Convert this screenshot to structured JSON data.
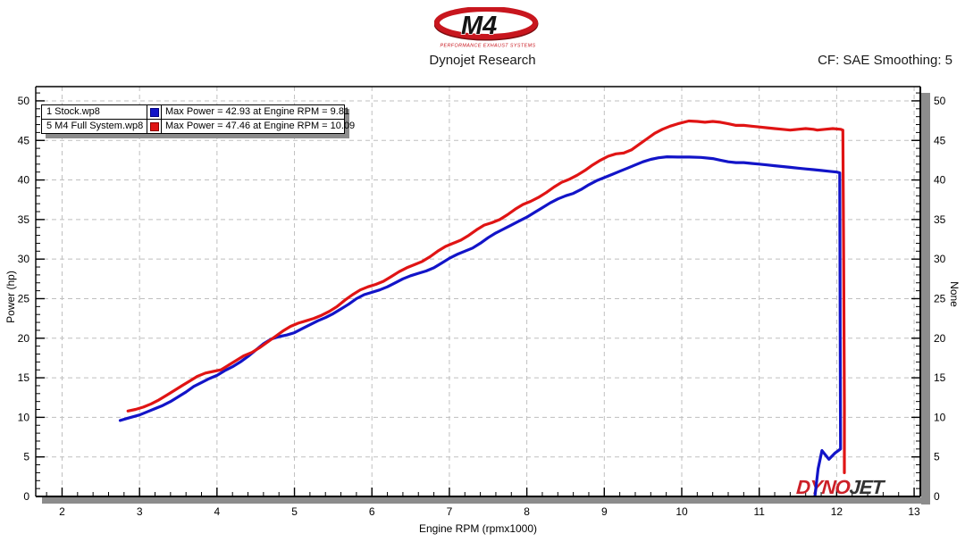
{
  "header": {
    "logo": {
      "m4_text": "M4",
      "tagline": "PERFORMANCE EXHAUST SYSTEMS"
    },
    "title": "Dynojet Research",
    "smoothing_label": "CF: SAE Smoothing: 5"
  },
  "legend": {
    "rows": [
      {
        "name": "1 Stock.wp8",
        "color": "#1214c8",
        "border": "#000080",
        "max_label": "Max Power = 42.93 at Engine RPM = 9.81"
      },
      {
        "name": "5 M4 Full System.wp8",
        "color": "#e01414",
        "border": "#8b0000",
        "max_label": "Max Power = 47.46 at Engine RPM = 10.09"
      }
    ]
  },
  "watermark": {
    "dyno": "DYNO",
    "jet": "JET",
    "dyno_color": "#cc2028",
    "jet_color": "#333333"
  },
  "chart_data": {
    "type": "line",
    "title": "",
    "xlabel": "Engine RPM (rpmx1000)",
    "ylabel_left": "Power (hp)",
    "ylabel_right": "None",
    "xlim": [
      1.66,
      13.08
    ],
    "ylim": [
      0,
      51.8
    ],
    "x_major_ticks": [
      2,
      3,
      4,
      5,
      6,
      7,
      8,
      9,
      10,
      11,
      12,
      13
    ],
    "x_minor_step": 0.2,
    "y_major_ticks": [
      0,
      5,
      10,
      15,
      20,
      25,
      30,
      35,
      40,
      45,
      50
    ],
    "y_minor_step": 1,
    "grid": "dashed",
    "grid_color": "#bfbfbf",
    "legend_position": "top-left",
    "series": [
      {
        "name": "1 Stock.wp8",
        "color": "#1214c8",
        "max_power": 42.93,
        "max_rpm": 9.81,
        "points": [
          [
            2.75,
            9.6
          ],
          [
            2.85,
            9.9
          ],
          [
            3.0,
            10.3
          ],
          [
            3.1,
            10.7
          ],
          [
            3.2,
            11.1
          ],
          [
            3.3,
            11.5
          ],
          [
            3.4,
            12.0
          ],
          [
            3.5,
            12.6
          ],
          [
            3.6,
            13.2
          ],
          [
            3.7,
            13.9
          ],
          [
            3.8,
            14.4
          ],
          [
            3.9,
            14.9
          ],
          [
            4.0,
            15.3
          ],
          [
            4.1,
            15.9
          ],
          [
            4.2,
            16.4
          ],
          [
            4.3,
            17.0
          ],
          [
            4.4,
            17.7
          ],
          [
            4.5,
            18.5
          ],
          [
            4.6,
            19.3
          ],
          [
            4.7,
            19.9
          ],
          [
            4.8,
            20.2
          ],
          [
            4.9,
            20.4
          ],
          [
            5.0,
            20.7
          ],
          [
            5.1,
            21.2
          ],
          [
            5.2,
            21.7
          ],
          [
            5.3,
            22.2
          ],
          [
            5.4,
            22.6
          ],
          [
            5.5,
            23.1
          ],
          [
            5.6,
            23.7
          ],
          [
            5.7,
            24.3
          ],
          [
            5.8,
            25.0
          ],
          [
            5.9,
            25.5
          ],
          [
            6.0,
            25.8
          ],
          [
            6.1,
            26.1
          ],
          [
            6.2,
            26.5
          ],
          [
            6.3,
            27.0
          ],
          [
            6.4,
            27.5
          ],
          [
            6.5,
            27.9
          ],
          [
            6.6,
            28.2
          ],
          [
            6.7,
            28.5
          ],
          [
            6.8,
            28.9
          ],
          [
            6.9,
            29.5
          ],
          [
            7.0,
            30.1
          ],
          [
            7.1,
            30.6
          ],
          [
            7.2,
            31.0
          ],
          [
            7.3,
            31.4
          ],
          [
            7.4,
            32.0
          ],
          [
            7.5,
            32.7
          ],
          [
            7.6,
            33.3
          ],
          [
            7.7,
            33.8
          ],
          [
            7.8,
            34.3
          ],
          [
            7.9,
            34.8
          ],
          [
            8.0,
            35.3
          ],
          [
            8.1,
            35.9
          ],
          [
            8.2,
            36.5
          ],
          [
            8.3,
            37.1
          ],
          [
            8.4,
            37.6
          ],
          [
            8.5,
            38.0
          ],
          [
            8.6,
            38.3
          ],
          [
            8.7,
            38.8
          ],
          [
            8.8,
            39.4
          ],
          [
            8.9,
            39.9
          ],
          [
            9.0,
            40.3
          ],
          [
            9.1,
            40.7
          ],
          [
            9.2,
            41.1
          ],
          [
            9.3,
            41.5
          ],
          [
            9.4,
            41.9
          ],
          [
            9.5,
            42.3
          ],
          [
            9.6,
            42.6
          ],
          [
            9.7,
            42.8
          ],
          [
            9.81,
            42.93
          ],
          [
            9.95,
            42.9
          ],
          [
            10.1,
            42.9
          ],
          [
            10.25,
            42.85
          ],
          [
            10.4,
            42.7
          ],
          [
            10.5,
            42.5
          ],
          [
            10.6,
            42.3
          ],
          [
            10.7,
            42.2
          ],
          [
            10.8,
            42.2
          ],
          [
            10.9,
            42.1
          ],
          [
            11.0,
            42.0
          ],
          [
            11.1,
            41.9
          ],
          [
            11.2,
            41.8
          ],
          [
            11.3,
            41.7
          ],
          [
            11.4,
            41.6
          ],
          [
            11.5,
            41.5
          ],
          [
            11.6,
            41.4
          ],
          [
            11.7,
            41.3
          ],
          [
            11.8,
            41.2
          ],
          [
            11.9,
            41.1
          ],
          [
            12.0,
            41.0
          ],
          [
            12.04,
            40.9
          ],
          [
            12.05,
            6.0
          ],
          [
            11.98,
            5.5
          ],
          [
            11.9,
            4.7
          ],
          [
            11.81,
            5.8
          ],
          [
            11.76,
            3.5
          ],
          [
            11.72,
            0.1
          ]
        ]
      },
      {
        "name": "5 M4 Full System.wp8",
        "color": "#e01414",
        "max_power": 47.46,
        "max_rpm": 10.09,
        "points": [
          [
            2.85,
            10.8
          ],
          [
            2.95,
            11.0
          ],
          [
            3.05,
            11.3
          ],
          [
            3.15,
            11.7
          ],
          [
            3.25,
            12.2
          ],
          [
            3.35,
            12.8
          ],
          [
            3.45,
            13.4
          ],
          [
            3.55,
            14.0
          ],
          [
            3.65,
            14.6
          ],
          [
            3.75,
            15.2
          ],
          [
            3.85,
            15.6
          ],
          [
            3.95,
            15.8
          ],
          [
            4.05,
            16.0
          ],
          [
            4.15,
            16.6
          ],
          [
            4.25,
            17.2
          ],
          [
            4.35,
            17.8
          ],
          [
            4.45,
            18.2
          ],
          [
            4.55,
            18.8
          ],
          [
            4.65,
            19.5
          ],
          [
            4.75,
            20.2
          ],
          [
            4.85,
            20.9
          ],
          [
            4.95,
            21.5
          ],
          [
            5.05,
            21.9
          ],
          [
            5.15,
            22.2
          ],
          [
            5.25,
            22.5
          ],
          [
            5.35,
            22.9
          ],
          [
            5.45,
            23.4
          ],
          [
            5.55,
            24.0
          ],
          [
            5.65,
            24.8
          ],
          [
            5.75,
            25.5
          ],
          [
            5.85,
            26.1
          ],
          [
            5.95,
            26.5
          ],
          [
            6.05,
            26.8
          ],
          [
            6.15,
            27.2
          ],
          [
            6.25,
            27.8
          ],
          [
            6.35,
            28.4
          ],
          [
            6.45,
            28.9
          ],
          [
            6.55,
            29.3
          ],
          [
            6.65,
            29.7
          ],
          [
            6.75,
            30.3
          ],
          [
            6.85,
            31.0
          ],
          [
            6.95,
            31.6
          ],
          [
            7.05,
            32.0
          ],
          [
            7.15,
            32.4
          ],
          [
            7.25,
            33.0
          ],
          [
            7.35,
            33.7
          ],
          [
            7.45,
            34.3
          ],
          [
            7.55,
            34.6
          ],
          [
            7.65,
            35.0
          ],
          [
            7.75,
            35.6
          ],
          [
            7.85,
            36.3
          ],
          [
            7.95,
            36.9
          ],
          [
            8.05,
            37.3
          ],
          [
            8.15,
            37.8
          ],
          [
            8.25,
            38.4
          ],
          [
            8.35,
            39.1
          ],
          [
            8.45,
            39.7
          ],
          [
            8.55,
            40.1
          ],
          [
            8.65,
            40.6
          ],
          [
            8.75,
            41.2
          ],
          [
            8.85,
            41.9
          ],
          [
            8.95,
            42.5
          ],
          [
            9.05,
            43.0
          ],
          [
            9.15,
            43.3
          ],
          [
            9.25,
            43.4
          ],
          [
            9.35,
            43.8
          ],
          [
            9.45,
            44.5
          ],
          [
            9.55,
            45.2
          ],
          [
            9.65,
            45.9
          ],
          [
            9.75,
            46.4
          ],
          [
            9.85,
            46.8
          ],
          [
            9.95,
            47.1
          ],
          [
            10.09,
            47.46
          ],
          [
            10.2,
            47.4
          ],
          [
            10.3,
            47.3
          ],
          [
            10.4,
            47.4
          ],
          [
            10.5,
            47.3
          ],
          [
            10.6,
            47.1
          ],
          [
            10.7,
            46.9
          ],
          [
            10.8,
            46.9
          ],
          [
            10.9,
            46.8
          ],
          [
            11.0,
            46.7
          ],
          [
            11.1,
            46.6
          ],
          [
            11.2,
            46.5
          ],
          [
            11.3,
            46.4
          ],
          [
            11.4,
            46.3
          ],
          [
            11.5,
            46.4
          ],
          [
            11.6,
            46.5
          ],
          [
            11.7,
            46.4
          ],
          [
            11.75,
            46.3
          ],
          [
            11.85,
            46.4
          ],
          [
            11.95,
            46.5
          ],
          [
            12.05,
            46.4
          ],
          [
            12.08,
            46.3
          ],
          [
            12.09,
            30.0
          ],
          [
            12.1,
            11.4
          ],
          [
            12.1,
            3.0
          ]
        ]
      }
    ]
  }
}
